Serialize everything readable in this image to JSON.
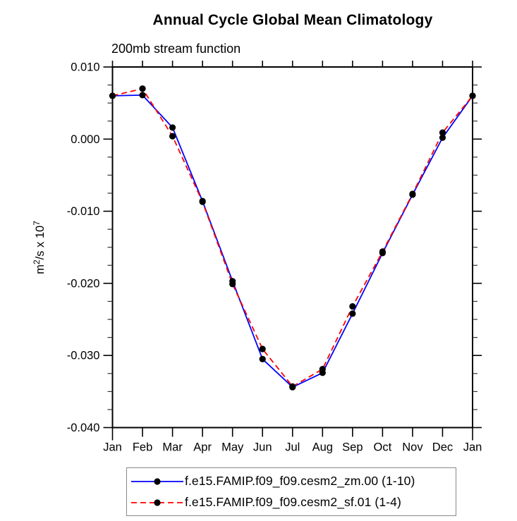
{
  "page": {
    "background": "#ffffff"
  },
  "chart_data": {
    "type": "line",
    "title": "Annual Cycle Global Mean Climatology",
    "subtitle": "200mb stream function",
    "ylabel": "m²/s x 10⁷",
    "ylabel_parts": [
      {
        "t": "m",
        "sup": false
      },
      {
        "t": "2",
        "sup": true
      },
      {
        "t": "/s x 10",
        "sup": false
      },
      {
        "t": "7",
        "sup": true
      }
    ],
    "x_categories": [
      "Jan",
      "Feb",
      "Mar",
      "Apr",
      "May",
      "Jun",
      "Jul",
      "Aug",
      "Sep",
      "Oct",
      "Nov",
      "Dec",
      "Jan"
    ],
    "yticks": {
      "labels": [
        "0.010",
        "0.000",
        "-0.010",
        "-0.020",
        "-0.030",
        "-0.040"
      ],
      "values": [
        0.01,
        0.0,
        -0.01,
        -0.02,
        -0.03,
        -0.04
      ]
    },
    "y_minor_step": 0.0025,
    "ylim": [
      -0.04,
      0.01
    ],
    "grid": false,
    "legend_position": "bottom",
    "series": [
      {
        "name": "f.e15.FAMIP.f09_f09.cesm2_zm.00 (1-10)",
        "color": "#0000ff",
        "line_style": "solid",
        "marker": "filled-circle",
        "marker_color": "#000000",
        "values": [
          0.006,
          0.0061,
          0.0016,
          -0.0086,
          -0.0197,
          -0.0305,
          -0.0344,
          -0.0324,
          -0.0242,
          -0.0158,
          -0.0077,
          0.0002,
          0.006
        ]
      },
      {
        "name": "f.e15.FAMIP.f09_f09.cesm2_sf.01 (1-4)",
        "color": "#ff0000",
        "line_style": "dashed",
        "marker": "filled-circle",
        "marker_color": "#000000",
        "values": [
          0.006,
          0.007,
          0.0004,
          -0.0087,
          -0.0201,
          -0.0291,
          -0.0343,
          -0.0319,
          -0.0232,
          -0.0156,
          -0.0076,
          0.0009,
          0.006
        ]
      }
    ]
  }
}
